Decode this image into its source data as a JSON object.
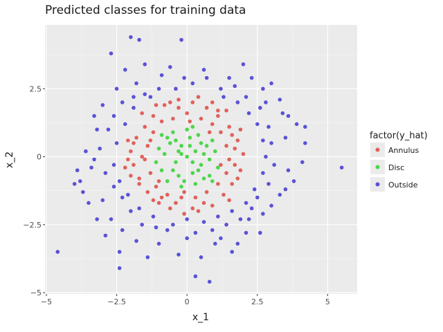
{
  "chart_data": {
    "type": "scatter",
    "title": "Predicted classes for training data",
    "xlabel": "x_1",
    "ylabel": "x_2",
    "xlim": [
      -5.05,
      6.05
    ],
    "ylim": [
      -5.05,
      4.85
    ],
    "x_ticks": [
      -5,
      -2.5,
      0,
      2.5,
      5
    ],
    "x_tick_labels": [
      "−5",
      "−2.5",
      "0",
      "2.5",
      "5"
    ],
    "y_ticks": [
      -5,
      -2.5,
      0,
      2.5
    ],
    "y_tick_labels": [
      "−5",
      "−2.5",
      "0",
      "2.5"
    ],
    "grid": true,
    "legend": {
      "title": "factor(y_hat)",
      "position": "right"
    },
    "series": [
      {
        "name": "Annulus",
        "color": "#E0615A",
        "points": [
          [
            -1.2,
            1.5
          ],
          [
            -0.8,
            1.9
          ],
          [
            -0.3,
            2.1
          ],
          [
            0.2,
            2.0
          ],
          [
            0.7,
            1.8
          ],
          [
            1.1,
            1.5
          ],
          [
            1.5,
            1.1
          ],
          [
            1.8,
            0.6
          ],
          [
            2.0,
            0.1
          ],
          [
            1.9,
            -0.5
          ],
          [
            1.6,
            -1.0
          ],
          [
            1.3,
            -1.4
          ],
          [
            0.9,
            -1.8
          ],
          [
            0.4,
            -2.0
          ],
          [
            -0.1,
            -2.1
          ],
          [
            -0.6,
            -1.9
          ],
          [
            -1.0,
            -1.7
          ],
          [
            -1.4,
            -1.3
          ],
          [
            -1.7,
            -0.8
          ],
          [
            -1.9,
            -0.3
          ],
          [
            -2.0,
            0.2
          ],
          [
            -1.8,
            0.7
          ],
          [
            -1.5,
            1.1
          ],
          [
            -2.0,
            -0.7
          ],
          [
            -1.6,
            1.6
          ],
          [
            1.4,
            1.7
          ],
          [
            1.9,
            1.0
          ],
          [
            -0.9,
            1.3
          ],
          [
            -0.5,
            1.4
          ],
          [
            0.0,
            1.6
          ],
          [
            0.5,
            1.4
          ],
          [
            0.9,
            1.2
          ],
          [
            1.2,
            0.9
          ],
          [
            1.4,
            0.4
          ],
          [
            1.5,
            -0.1
          ],
          [
            1.4,
            -0.6
          ],
          [
            1.1,
            -1.0
          ],
          [
            0.7,
            -1.3
          ],
          [
            0.3,
            -1.5
          ],
          [
            -0.2,
            -1.5
          ],
          [
            -0.7,
            -1.4
          ],
          [
            -1.1,
            -1.1
          ],
          [
            -1.3,
            -0.6
          ],
          [
            -1.5,
            -0.1
          ],
          [
            -1.4,
            0.4
          ],
          [
            -1.2,
            0.9
          ],
          [
            -1.1,
            1.9
          ],
          [
            -0.6,
            2.0
          ],
          [
            0.4,
            2.2
          ],
          [
            0.9,
            2.0
          ],
          [
            1.7,
            0.3
          ],
          [
            1.7,
            -0.3
          ],
          [
            1.8,
            -0.8
          ],
          [
            1.5,
            -1.6
          ],
          [
            0.2,
            -1.9
          ],
          [
            -0.4,
            -1.7
          ],
          [
            -1.2,
            -1.6
          ],
          [
            -1.7,
            -1.0
          ],
          [
            -2.1,
            -0.1
          ],
          [
            -1.9,
            0.5
          ],
          [
            -2.2,
            -0.4
          ],
          [
            -2.1,
            0.6
          ],
          [
            1.1,
            1.7
          ],
          [
            0.6,
            -1.7
          ],
          [
            -0.9,
            -1.5
          ],
          [
            -1.6,
            0.0
          ],
          [
            1.6,
            0.8
          ],
          [
            -0.3,
            1.8
          ],
          [
            0.1,
            1.3
          ],
          [
            -1.3,
            0.6
          ],
          [
            1.2,
            -0.3
          ],
          [
            -0.1,
            -1.3
          ],
          [
            -1.0,
            -0.9
          ],
          [
            0.8,
            0.9
          ]
        ]
      },
      {
        "name": "Disc",
        "color": "#4CD64C",
        "points": [
          [
            0.0,
            0.0
          ],
          [
            0.3,
            0.2
          ],
          [
            -0.2,
            0.4
          ],
          [
            0.5,
            -0.3
          ],
          [
            -0.4,
            -0.2
          ],
          [
            0.1,
            0.7
          ],
          [
            -0.6,
            0.5
          ],
          [
            0.7,
            0.4
          ],
          [
            0.2,
            -0.6
          ],
          [
            -0.3,
            -0.7
          ],
          [
            0.8,
            -0.1
          ],
          [
            -0.8,
            0.1
          ],
          [
            0.4,
            0.8
          ],
          [
            -0.5,
            0.9
          ],
          [
            0.9,
            0.6
          ],
          [
            -0.9,
            -0.5
          ],
          [
            0.6,
            -0.8
          ],
          [
            -0.1,
            -0.9
          ],
          [
            1.0,
            0.2
          ],
          [
            -1.0,
            0.3
          ],
          [
            0.0,
            1.0
          ],
          [
            0.3,
            -1.0
          ],
          [
            -0.7,
            -0.9
          ],
          [
            0.8,
            -0.7
          ],
          [
            -0.2,
            0.1
          ],
          [
            0.2,
            -0.2
          ],
          [
            0.6,
            0.1
          ],
          [
            -0.5,
            -0.5
          ],
          [
            0.1,
            0.4
          ],
          [
            -0.3,
            0.2
          ],
          [
            0.4,
            -0.5
          ],
          [
            -0.7,
            0.7
          ],
          [
            1.1,
            -0.4
          ],
          [
            -1.1,
            -0.2
          ],
          [
            0.5,
            0.5
          ],
          [
            -0.4,
            0.6
          ],
          [
            0.2,
            1.1
          ],
          [
            -0.2,
            -1.1
          ],
          [
            0.9,
            -0.9
          ],
          [
            -0.9,
            0.8
          ]
        ]
      },
      {
        "name": "Outside",
        "color": "#5A52D6",
        "points": [
          [
            -4.6,
            -3.5
          ],
          [
            5.5,
            -0.4
          ],
          [
            -2.0,
            4.4
          ],
          [
            -1.7,
            4.3
          ],
          [
            -0.2,
            4.3
          ],
          [
            -2.7,
            3.8
          ],
          [
            -1.5,
            3.4
          ],
          [
            2.0,
            3.4
          ],
          [
            -0.6,
            3.3
          ],
          [
            0.6,
            3.2
          ],
          [
            -3.3,
            -0.1
          ],
          [
            -3.8,
            -0.9
          ],
          [
            -3.5,
            -1.7
          ],
          [
            -3.2,
            -2.3
          ],
          [
            -2.9,
            -2.9
          ],
          [
            -2.4,
            -3.5
          ],
          [
            -2.4,
            -4.1
          ],
          [
            -1.4,
            -3.7
          ],
          [
            -0.3,
            -3.6
          ],
          [
            0.5,
            -3.7
          ],
          [
            0.3,
            -4.4
          ],
          [
            0.8,
            -4.6
          ],
          [
            1.2,
            -3.0
          ],
          [
            1.8,
            -3.2
          ],
          [
            2.2,
            -2.3
          ],
          [
            2.6,
            -2.8
          ],
          [
            3.0,
            -1.8
          ],
          [
            3.5,
            -1.2
          ],
          [
            3.8,
            -0.9
          ],
          [
            4.1,
            -0.2
          ],
          [
            4.2,
            0.5
          ],
          [
            4.2,
            1.1
          ],
          [
            3.9,
            1.2
          ],
          [
            3.6,
            1.5
          ],
          [
            3.3,
            2.1
          ],
          [
            3.0,
            2.7
          ],
          [
            2.7,
            2.5
          ],
          [
            2.3,
            2.9
          ],
          [
            1.7,
            2.6
          ],
          [
            1.2,
            2.5
          ],
          [
            0.7,
            2.9
          ],
          [
            0.2,
            2.7
          ],
          [
            -0.4,
            2.5
          ],
          [
            -1.0,
            2.5
          ],
          [
            -1.5,
            2.3
          ],
          [
            -1.9,
            2.2
          ],
          [
            -2.3,
            2.0
          ],
          [
            -2.6,
            1.5
          ],
          [
            -2.8,
            1.0
          ],
          [
            -3.1,
            0.3
          ],
          [
            -3.4,
            -0.4
          ],
          [
            -2.9,
            -0.6
          ],
          [
            -2.6,
            -1.1
          ],
          [
            -2.3,
            -1.5
          ],
          [
            -2.0,
            -2.0
          ],
          [
            -1.6,
            -2.5
          ],
          [
            -1.1,
            -2.6
          ],
          [
            -0.5,
            -2.5
          ],
          [
            0.0,
            -2.3
          ],
          [
            0.6,
            -2.4
          ],
          [
            1.1,
            -2.2
          ],
          [
            1.6,
            -2.0
          ],
          [
            2.1,
            -1.7
          ],
          [
            2.4,
            -1.2
          ],
          [
            2.7,
            -0.6
          ],
          [
            2.8,
            0.0
          ],
          [
            2.7,
            0.6
          ],
          [
            2.5,
            1.2
          ],
          [
            2.2,
            1.6
          ],
          [
            1.8,
            2.0
          ],
          [
            1.3,
            2.2
          ],
          [
            -1.3,
            2.2
          ],
          [
            -1.9,
            1.8
          ],
          [
            -2.2,
            1.2
          ],
          [
            -2.5,
            0.5
          ],
          [
            -2.6,
            -0.3
          ],
          [
            -2.4,
            -0.9
          ],
          [
            -2.1,
            -1.4
          ],
          [
            -1.7,
            -1.9
          ],
          [
            -1.2,
            -2.2
          ],
          [
            -0.7,
            -2.7
          ],
          [
            0.3,
            -2.8
          ],
          [
            0.9,
            -2.7
          ],
          [
            1.4,
            -2.5
          ],
          [
            1.9,
            -2.3
          ],
          [
            2.3,
            -1.9
          ],
          [
            2.5,
            -1.5
          ],
          [
            2.9,
            -1.0
          ],
          [
            3.1,
            -0.3
          ],
          [
            3.0,
            0.5
          ],
          [
            2.9,
            1.1
          ],
          [
            2.6,
            1.8
          ],
          [
            2.1,
            2.2
          ],
          [
            1.5,
            2.9
          ],
          [
            -0.9,
            3.0
          ],
          [
            -1.8,
            2.7
          ],
          [
            -2.5,
            2.5
          ],
          [
            -3.0,
            1.9
          ],
          [
            -3.2,
            1.0
          ],
          [
            -3.6,
            0.2
          ],
          [
            -3.9,
            -0.5
          ],
          [
            -3.7,
            -1.3
          ],
          [
            -3.0,
            -1.6
          ],
          [
            -2.7,
            -2.3
          ],
          [
            -2.3,
            -2.7
          ],
          [
            -1.8,
            -3.1
          ],
          [
            -1.0,
            -3.2
          ],
          [
            0.0,
            -3.0
          ],
          [
            1.0,
            -3.2
          ],
          [
            1.6,
            -3.5
          ],
          [
            2.1,
            -2.8
          ],
          [
            2.7,
            -2.1
          ],
          [
            3.3,
            -1.4
          ],
          [
            3.6,
            -0.5
          ],
          [
            3.5,
            0.7
          ],
          [
            3.4,
            1.6
          ],
          [
            2.8,
            2.0
          ],
          [
            -0.1,
            2.9
          ],
          [
            -2.2,
            3.2
          ],
          [
            -3.3,
            1.5
          ],
          [
            -4.0,
            -1.0
          ]
        ]
      }
    ]
  }
}
